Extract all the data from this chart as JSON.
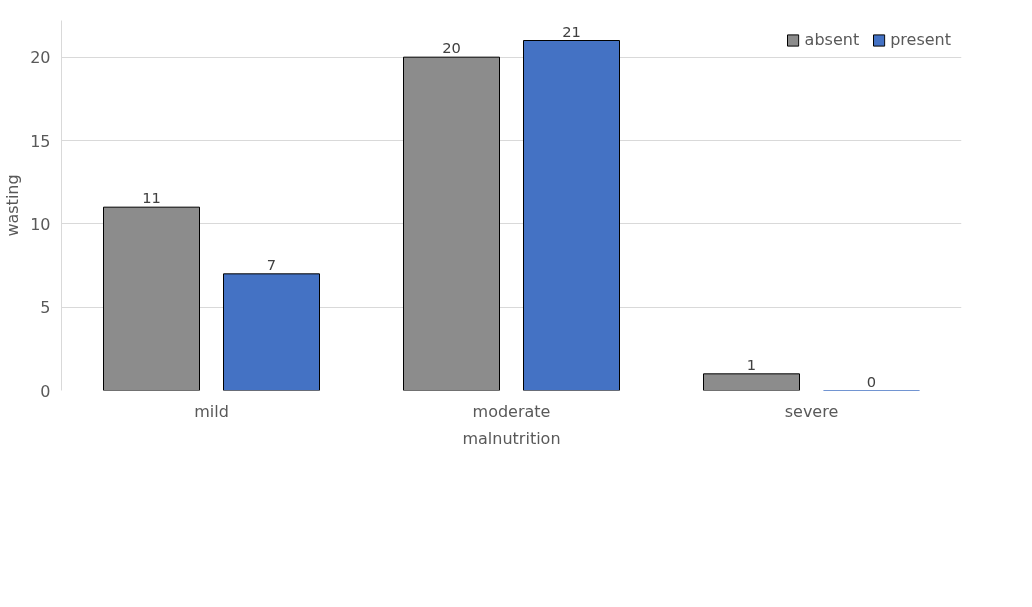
{
  "chart_data": {
    "type": "bar",
    "xlabel": "malnutrition",
    "ylabel": "wasting",
    "categories": [
      "mild",
      "moderate",
      "severe"
    ],
    "series": [
      {
        "name": "absent",
        "color": "#8c8c8c",
        "values": [
          11,
          20,
          1
        ]
      },
      {
        "name": "present",
        "color": "#4472c4",
        "values": [
          7,
          21,
          0
        ]
      }
    ],
    "ylim": [
      0,
      22.2
    ],
    "yticks": [
      0,
      5,
      10,
      15,
      20
    ],
    "grid": "y",
    "legend": "top right",
    "data_labels": true
  }
}
